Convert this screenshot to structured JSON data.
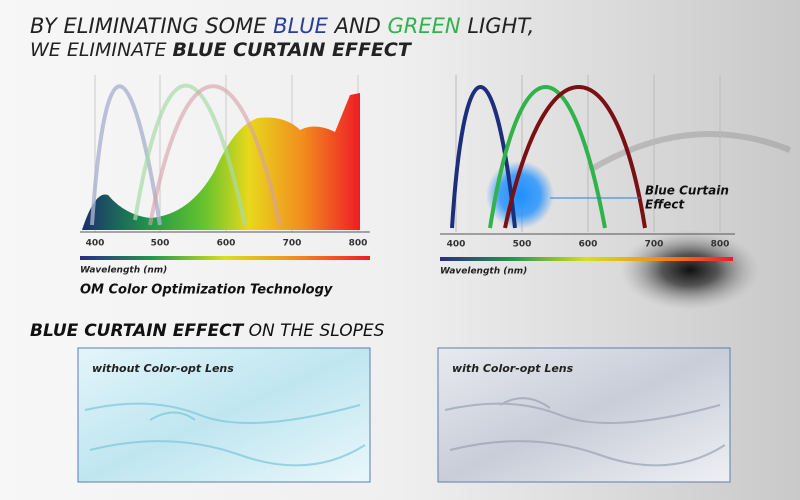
{
  "headline": {
    "line1": [
      "BY ELIMINATING SOME ",
      "BLUE",
      " AND ",
      "GREEN",
      " LIGHT,"
    ],
    "line2": [
      "WE ELIMINATE ",
      "BLUE CURTAIN EFFECT"
    ]
  },
  "left_chart": {
    "ticks": [
      "400",
      "500",
      "600",
      "700",
      "800"
    ],
    "axis_label": "Wavelength (nm)",
    "caption": "OM Color Optimization Technology"
  },
  "right_chart": {
    "ticks": [
      "400",
      "500",
      "600",
      "700",
      "800"
    ],
    "axis_label": "Wavelength (nm)",
    "annotation": [
      "Blue Curtain",
      "Effect"
    ]
  },
  "section": {
    "title": [
      "BLUE CURTAIN EFFECT",
      " ON THE SLOPES"
    ]
  },
  "images": [
    {
      "caption": "without Color-opt Lens"
    },
    {
      "caption": "with Color-opt Lens"
    }
  ]
}
